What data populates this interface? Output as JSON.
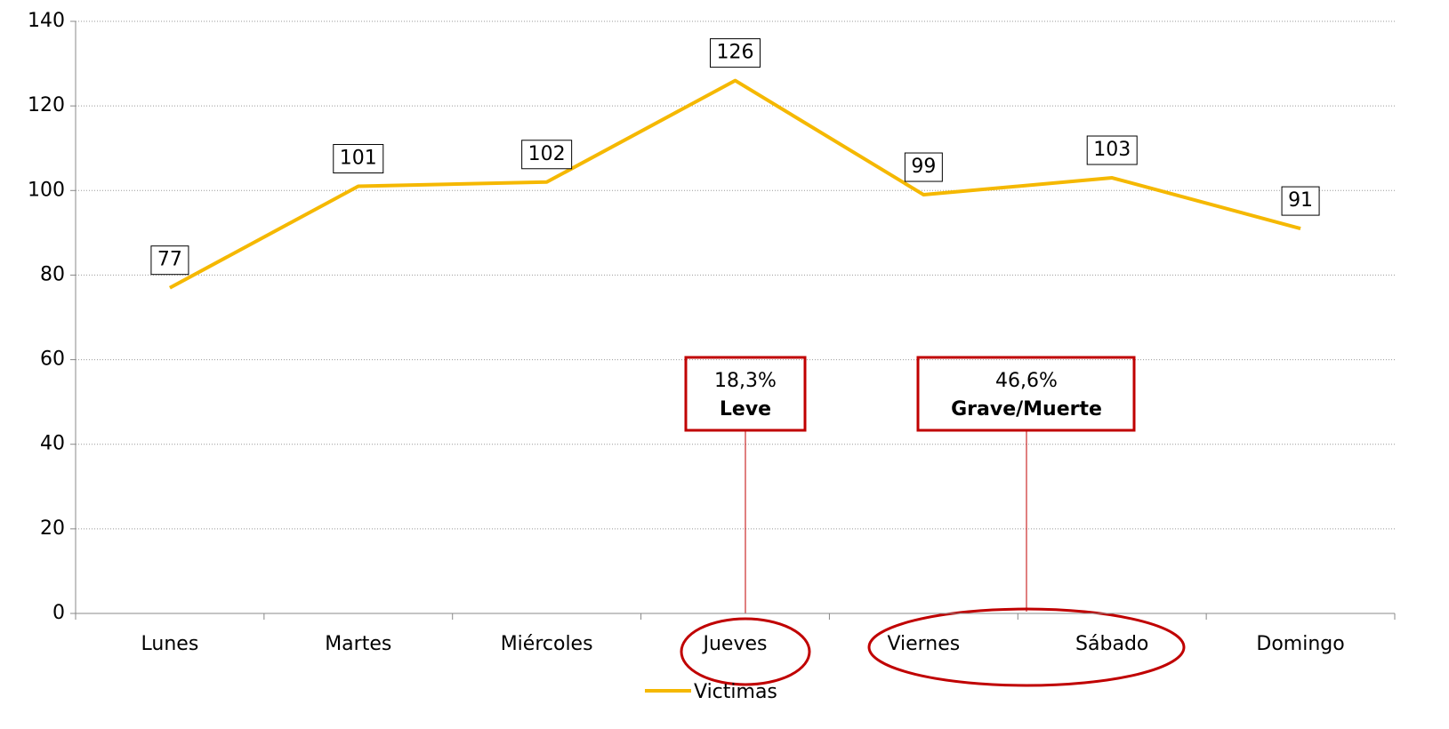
{
  "chart_data": {
    "type": "line",
    "categories": [
      "Lunes",
      "Martes",
      "Miércoles",
      "Jueves",
      "Viernes",
      "Sábado",
      "Domingo"
    ],
    "series": [
      {
        "name": "Victimas",
        "color": "#f5b800",
        "values": [
          77,
          101,
          102,
          126,
          99,
          103,
          91
        ]
      }
    ],
    "ylim": [
      0,
      140
    ],
    "yticks": [
      0,
      20,
      40,
      60,
      80,
      100,
      120,
      140
    ],
    "grid": true,
    "legend": "bottom",
    "annotations": [
      {
        "text": "18,3%",
        "label": "Leve"
      },
      {
        "text": "46,6%",
        "label": "Grave/Muerte"
      }
    ]
  }
}
